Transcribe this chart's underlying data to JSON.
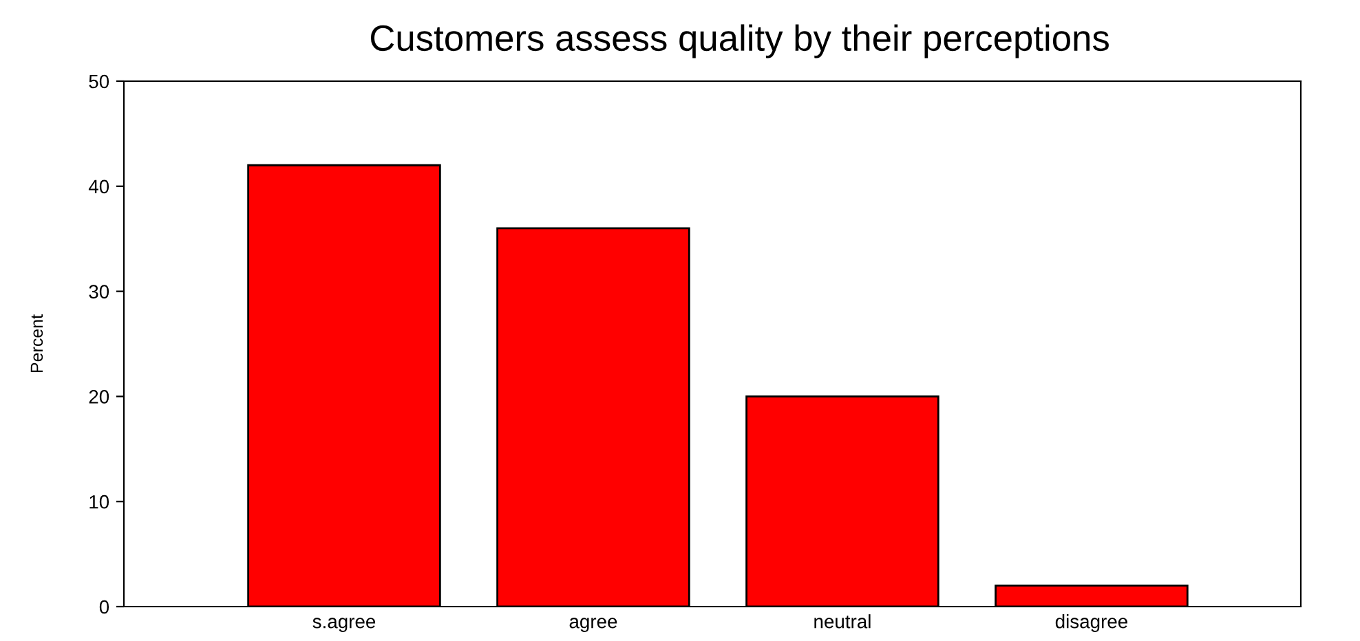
{
  "chart_data": {
    "type": "bar",
    "title": "Customers assess quality by their perceptions",
    "ylabel": "Percent",
    "categories": [
      "s.agree",
      "agree",
      "neutral",
      "disagree"
    ],
    "values": [
      42,
      36,
      20,
      2
    ],
    "color": "#ff0000",
    "ylim": [
      0,
      50
    ],
    "yticks": [
      0,
      10,
      20,
      30,
      40,
      50
    ],
    "grid": false,
    "legend": false
  }
}
